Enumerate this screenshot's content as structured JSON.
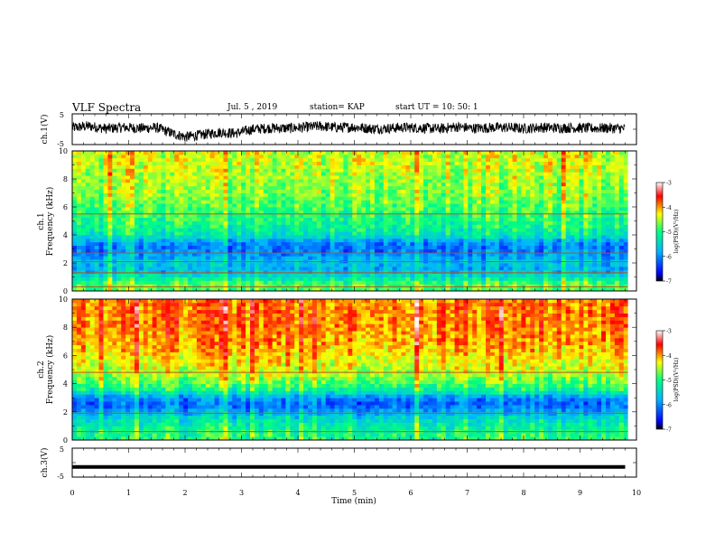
{
  "header": {
    "title": "VLF Spectra",
    "date": "Jul. 5 , 2019",
    "station": "station= KAP",
    "start": "start UT = 10: 50: 1"
  },
  "colors": {
    "trace": "#000000",
    "colormap": [
      "#000000",
      "#0000ff",
      "#00b4ff",
      "#00ff80",
      "#ffff00",
      "#ff0000",
      "#ffffff"
    ]
  },
  "chart_data": [
    {
      "type": "line",
      "panel": "ch1-waveform",
      "ylabel": "ch.1(V)",
      "ylim": [
        -5,
        5
      ],
      "yticks": [
        "5",
        "-5"
      ],
      "xlim": [
        0,
        10
      ],
      "x": [
        0.0,
        0.3,
        0.6,
        0.9,
        1.2,
        1.5,
        1.8,
        2.0,
        2.3,
        2.6,
        2.9,
        3.2,
        3.5,
        3.8,
        4.1,
        4.4,
        4.7,
        5.0,
        5.3,
        5.6,
        5.9,
        6.2,
        6.5,
        6.8,
        7.1,
        7.4,
        7.7,
        8.0,
        8.3,
        8.6,
        8.9,
        9.2,
        9.5,
        9.8
      ],
      "y": [
        0.5,
        1.0,
        0.2,
        0.6,
        0.3,
        0.5,
        -1.5,
        -2.5,
        -1.8,
        -1.0,
        -1.3,
        0.0,
        0.4,
        0.3,
        0.6,
        1.0,
        0.5,
        0.7,
        0.2,
        0.3,
        0.6,
        0.4,
        0.1,
        0.8,
        0.3,
        0.5,
        0.6,
        0.2,
        0.6,
        0.4,
        0.5,
        0.3,
        0.4,
        0.2
      ]
    },
    {
      "type": "heatmap",
      "panel": "ch1-spectrogram",
      "label": "ch.1",
      "ylabel": "Frequency (kHz)",
      "ylim": [
        0,
        10
      ],
      "yticks": [
        "0",
        "2",
        "4",
        "6",
        "8",
        "10"
      ],
      "xlim": [
        0,
        10
      ],
      "colorbar": {
        "label": "log(PSD)(V²/Hz)",
        "range": [
          -7,
          -3
        ],
        "ticks": [
          "-3",
          "-4",
          "-5",
          "-6",
          "-7"
        ]
      },
      "freq_khz": [
        0.5,
        1.0,
        1.5,
        2.0,
        2.5,
        3.0,
        3.5,
        4.0,
        4.5,
        5.0,
        5.5,
        6.0,
        6.5,
        7.0,
        7.5,
        8.0,
        8.5,
        9.0,
        9.5,
        10.0
      ],
      "typical_log_psd": [
        -4.8,
        -5.3,
        -5.8,
        -5.6,
        -5.9,
        -6.1,
        -5.9,
        -5.3,
        -5.1,
        -5.0,
        -4.9,
        -4.8,
        -4.7,
        -4.6,
        -4.6,
        -4.5,
        -4.5,
        -4.4,
        -4.4,
        -4.4
      ],
      "lines_khz": [
        0.3,
        1.3,
        2.1,
        2.7,
        5.5
      ]
    },
    {
      "type": "heatmap",
      "panel": "ch2-spectrogram",
      "label": "ch.2",
      "ylabel": "Frequency (kHz)",
      "ylim": [
        0,
        10
      ],
      "yticks": [
        "0",
        "2",
        "4",
        "6",
        "8",
        "10"
      ],
      "xlim": [
        0,
        10
      ],
      "colorbar": {
        "label": "log(PSD)(V²/Hz)",
        "range": [
          -7,
          -3
        ],
        "ticks": [
          "-3",
          "-4",
          "-5",
          "-6",
          "-7"
        ]
      },
      "freq_khz": [
        0.5,
        1.0,
        1.5,
        2.0,
        2.5,
        3.0,
        3.5,
        4.0,
        4.5,
        5.0,
        5.5,
        6.0,
        6.5,
        7.0,
        7.5,
        8.0,
        8.5,
        9.0,
        9.5,
        10.0
      ],
      "typical_log_psd": [
        -5.0,
        -5.2,
        -5.4,
        -5.8,
        -6.2,
        -6.0,
        -5.2,
        -4.8,
        -4.6,
        -4.4,
        -4.3,
        -4.2,
        -4.1,
        -4.0,
        -4.0,
        -3.9,
        -3.9,
        -3.9,
        -3.9,
        -3.9
      ],
      "lines_khz": [
        0.6,
        1.9,
        4.8
      ]
    },
    {
      "type": "line",
      "panel": "ch3-waveform",
      "ylabel": "ch.3(V)",
      "ylim": [
        -5,
        5
      ],
      "yticks": [
        "5",
        "-5"
      ],
      "xlim": [
        0,
        10
      ],
      "xlabel": "Time (min)",
      "xticks": [
        "0",
        "1",
        "2",
        "3",
        "4",
        "5",
        "6",
        "7",
        "8",
        "9",
        "10"
      ],
      "x": [
        0,
        9.8
      ],
      "y": [
        -1.5,
        -1.5
      ]
    }
  ]
}
